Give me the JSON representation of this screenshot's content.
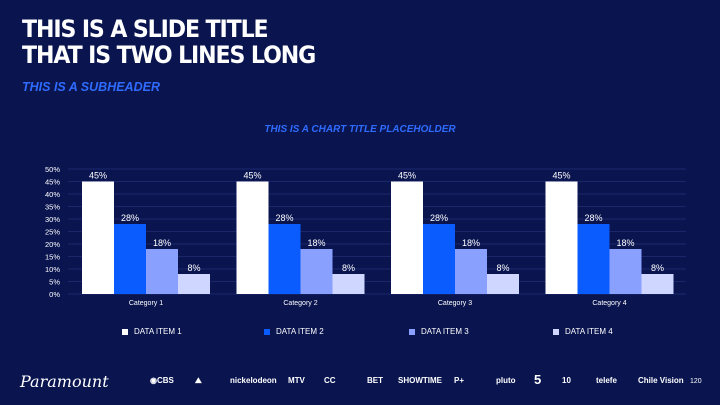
{
  "slide": {
    "title_line1": "THIS IS A SLIDE TITLE",
    "title_line2": "THAT IS TWO LINES LONG",
    "subheader": "THIS IS A SUBHEADER",
    "page_number": "120"
  },
  "colors": {
    "background": "#0a1550",
    "accent": "#2f6bff"
  },
  "chart_data": {
    "type": "bar",
    "title": "THIS IS A CHART TITLE PLACEHOLDER",
    "categories": [
      "Category 1",
      "Category 2",
      "Category 3",
      "Category 4"
    ],
    "series": [
      {
        "name": "DATA ITEM 1",
        "values": [
          45,
          45,
          45,
          45
        ],
        "labels": [
          "45%",
          "45%",
          "45%",
          "45%"
        ],
        "color": "#ffffff"
      },
      {
        "name": "DATA ITEM 2",
        "values": [
          28,
          28,
          28,
          28
        ],
        "labels": [
          "28%",
          "28%",
          "28%",
          "28%"
        ],
        "color": "#0a5cff"
      },
      {
        "name": "DATA ITEM 3",
        "values": [
          18,
          18,
          18,
          18
        ],
        "labels": [
          "18%",
          "18%",
          "18%",
          "18%"
        ],
        "color": "#8aa0ff"
      },
      {
        "name": "DATA ITEM 4",
        "values": [
          8,
          8,
          8,
          8
        ],
        "labels": [
          "8%",
          "8%",
          "8%",
          "8%"
        ],
        "color": "#cfd6ff"
      }
    ],
    "y_ticks": [
      "0%",
      "5%",
      "10%",
      "15%",
      "20%",
      "25%",
      "30%",
      "35%",
      "40%",
      "45%",
      "50%"
    ],
    "ylim": [
      0,
      50
    ],
    "grid": true,
    "legend_position": "bottom"
  },
  "footer": {
    "brand": "Paramount",
    "logos": [
      {
        "name": "cbs-logo",
        "text": "◉CBS"
      },
      {
        "name": "paramount-pictures-logo",
        "text": "⛰"
      },
      {
        "name": "nickelodeon-logo",
        "text": "nickelodeon"
      },
      {
        "name": "mtv-logo",
        "text": "MTV"
      },
      {
        "name": "comedy-central-logo",
        "text": "CC"
      },
      {
        "name": "bet-logo",
        "text": "BET"
      },
      {
        "name": "showtime-logo",
        "text": "SHOWTIME"
      },
      {
        "name": "paramount-plus-logo",
        "text": "P+"
      },
      {
        "name": "pluto-tv-logo",
        "text": "pluto"
      },
      {
        "name": "channel-5-logo",
        "text": "5"
      },
      {
        "name": "network-10-logo",
        "text": "10"
      },
      {
        "name": "telefe-logo",
        "text": "telefe"
      },
      {
        "name": "chilevision-logo",
        "text": "Chile Vision"
      }
    ]
  }
}
